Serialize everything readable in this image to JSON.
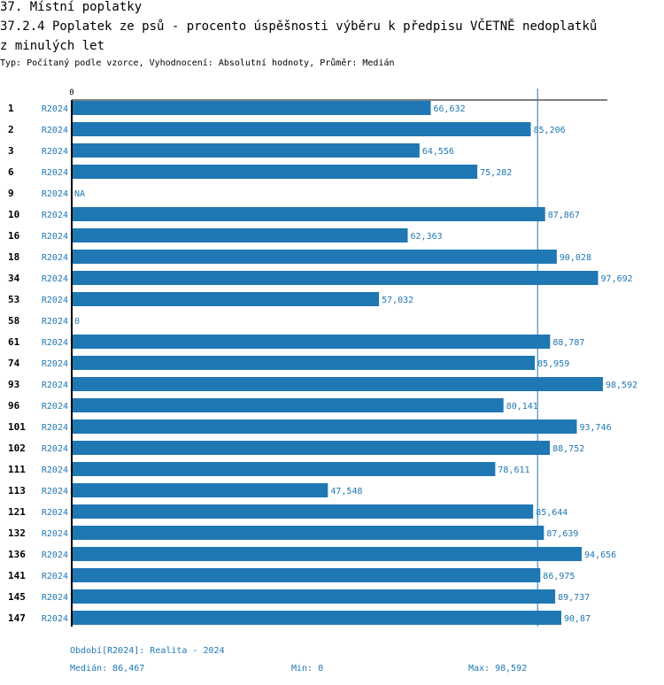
{
  "header": {
    "section": "37. Místní poplatky",
    "title_line1": "37.2.4 Poplatek ze psů - procento úspěšnosti výběru k předpisu VČETNĚ nedoplatků",
    "title_line2": "z minulých let",
    "subtitle": "Typ: Počítaný podle vzorce, Vyhodnocení: Absolutní hodnoty, Průměr: Medián"
  },
  "chart_data": {
    "type": "bar",
    "orientation": "horizontal",
    "axis_tick": "0",
    "xlim": [
      0,
      98.592
    ],
    "median": 86.467,
    "bar_color": "#1f77b4",
    "rows": [
      {
        "id": "1",
        "period": "R2024",
        "value": 66.632,
        "label": "66,632"
      },
      {
        "id": "2",
        "period": "R2024",
        "value": 85.206,
        "label": "85,206"
      },
      {
        "id": "3",
        "period": "R2024",
        "value": 64.556,
        "label": "64,556"
      },
      {
        "id": "6",
        "period": "R2024",
        "value": 75.282,
        "label": "75,282"
      },
      {
        "id": "9",
        "period": "R2024",
        "value": null,
        "label": "NA"
      },
      {
        "id": "10",
        "period": "R2024",
        "value": 87.867,
        "label": "87,867"
      },
      {
        "id": "16",
        "period": "R2024",
        "value": 62.363,
        "label": "62,363"
      },
      {
        "id": "18",
        "period": "R2024",
        "value": 90.028,
        "label": "90,028"
      },
      {
        "id": "34",
        "period": "R2024",
        "value": 97.692,
        "label": "97,692"
      },
      {
        "id": "53",
        "period": "R2024",
        "value": 57.032,
        "label": "57,032"
      },
      {
        "id": "58",
        "period": "R2024",
        "value": 0,
        "label": "0"
      },
      {
        "id": "61",
        "period": "R2024",
        "value": 88.787,
        "label": "88,787"
      },
      {
        "id": "74",
        "period": "R2024",
        "value": 85.959,
        "label": "85,959"
      },
      {
        "id": "93",
        "period": "R2024",
        "value": 98.592,
        "label": "98,592"
      },
      {
        "id": "96",
        "period": "R2024",
        "value": 80.141,
        "label": "80,141"
      },
      {
        "id": "101",
        "period": "R2024",
        "value": 93.746,
        "label": "93,746"
      },
      {
        "id": "102",
        "period": "R2024",
        "value": 88.752,
        "label": "88,752"
      },
      {
        "id": "111",
        "period": "R2024",
        "value": 78.611,
        "label": "78,611"
      },
      {
        "id": "113",
        "period": "R2024",
        "value": 47.548,
        "label": "47,548"
      },
      {
        "id": "121",
        "period": "R2024",
        "value": 85.644,
        "label": "85,644"
      },
      {
        "id": "132",
        "period": "R2024",
        "value": 87.639,
        "label": "87,639"
      },
      {
        "id": "136",
        "period": "R2024",
        "value": 94.656,
        "label": "94,656"
      },
      {
        "id": "141",
        "period": "R2024",
        "value": 86.975,
        "label": "86,975"
      },
      {
        "id": "145",
        "period": "R2024",
        "value": 89.737,
        "label": "89,737"
      },
      {
        "id": "147",
        "period": "R2024",
        "value": 90.87,
        "label": "90,87"
      }
    ]
  },
  "footer": {
    "period_legend": "Období[R2024]: Realita - 2024",
    "median": "Medián: 86,467",
    "min": "Min: 0",
    "max": "Max: 98,592"
  }
}
